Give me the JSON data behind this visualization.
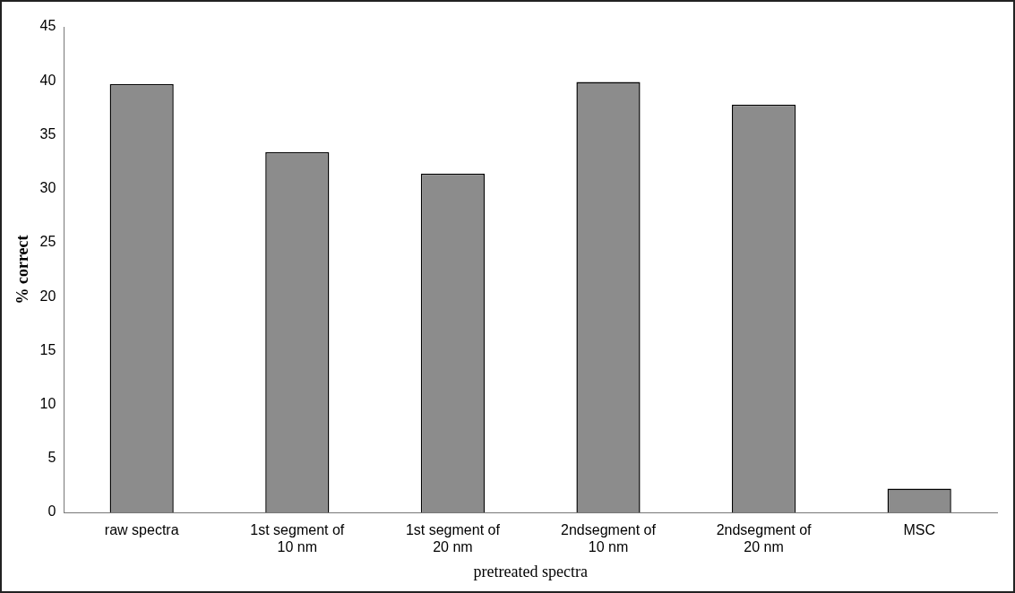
{
  "chart_data": {
    "type": "bar",
    "xlabel": "pretreated spectra",
    "ylabel": "% correct",
    "categories": [
      "raw spectra",
      "1st segment of 10 nm",
      "1st segment of 20 nm",
      "2ndsegment of 10 nm",
      "2ndsegment of 20 nm",
      "MSC"
    ],
    "values": [
      39.7,
      33.4,
      31.4,
      39.9,
      37.8,
      2.2
    ],
    "color": "#8c8c8c",
    "ylim": [
      0,
      45
    ],
    "yticks": [
      0,
      5,
      10,
      15,
      20,
      25,
      30,
      35,
      40,
      45
    ],
    "grid": false,
    "legend": false
  }
}
